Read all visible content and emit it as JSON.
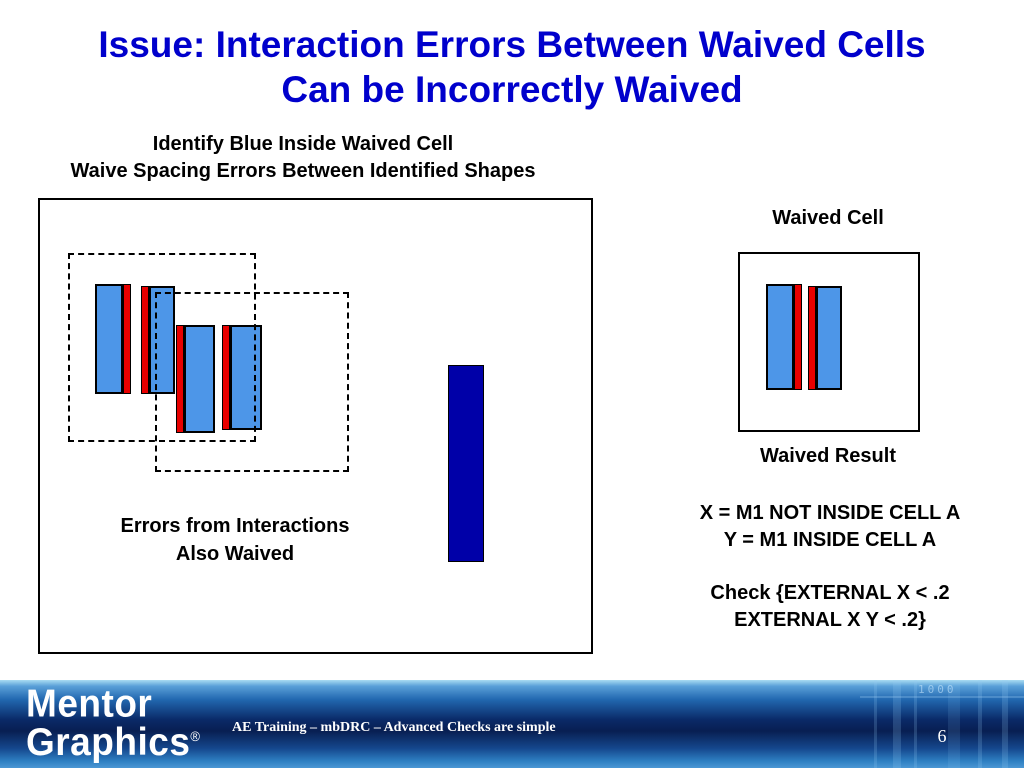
{
  "slide": {
    "title_line1": "Issue: Interaction Errors Between Waived Cells",
    "title_line2": "Can be Incorrectly Waived",
    "subtitle_line1": "Identify Blue Inside Waived Cell",
    "subtitle_line2": "Waive Spacing Errors Between Identified Shapes"
  },
  "left_diagram": {
    "caption_line1": "Errors from Interactions",
    "caption_line2": "Also Waived"
  },
  "right_panel": {
    "waived_cell_label": "Waived Cell",
    "waived_result_label": "Waived Result",
    "rule_line1": "X = M1 NOT INSIDE CELL A",
    "rule_line2": "Y = M1 INSIDE CELL A",
    "check_line1": "Check {EXTERNAL X < .2",
    "check_line2": "EXTERNAL X Y < .2}"
  },
  "footer": {
    "logo_word1": "Mentor",
    "logo_word2": "Graphics",
    "logo_registered": "®",
    "training_text": "AE Training – mbDRC – Advanced Checks are simple",
    "page_number": "6",
    "decor_digits": "1000"
  },
  "colors": {
    "title_blue": "#0000CC",
    "shape_blue": "#4D96E8",
    "error_red": "#E80000",
    "result_navy": "#0000A8",
    "footer_dark_blue": "#0A2A68",
    "footer_mid_blue": "#2E7FC2"
  }
}
